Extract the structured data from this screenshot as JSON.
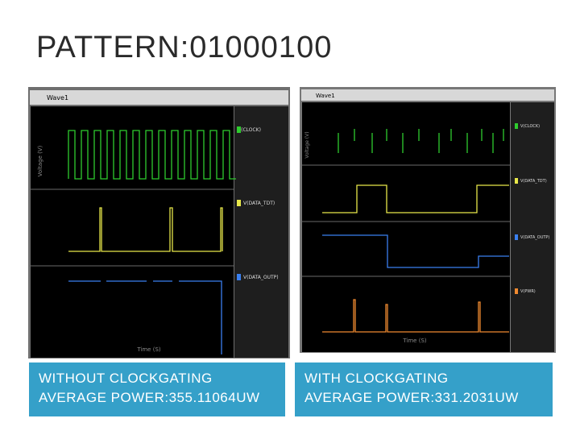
{
  "title": "PATTERN:01000100",
  "left": {
    "window_title": "Wave1",
    "signals": [
      "V(CLOCK)",
      "V(DATA_TDT)",
      "V(DATA_OUTP)"
    ],
    "y_axis_label": "Voltage (V)",
    "x_axis_label": "Time (S)",
    "caption": [
      "WITHOUT CLOCKGATING",
      "AVERAGE POWER:355.11064UW"
    ]
  },
  "right": {
    "window_title": "Wave1",
    "signals": [
      "V(CLOCK)",
      "V(DATA_TDT)",
      "V(DATA_OUTP)",
      "V(PWR)"
    ],
    "y_axis_label": "Voltage (V)",
    "x_axis_label": "Time (S)",
    "caption": [
      "WITH CLOCKGATING",
      "AVERAGE POWER:331.2031UW"
    ]
  }
}
